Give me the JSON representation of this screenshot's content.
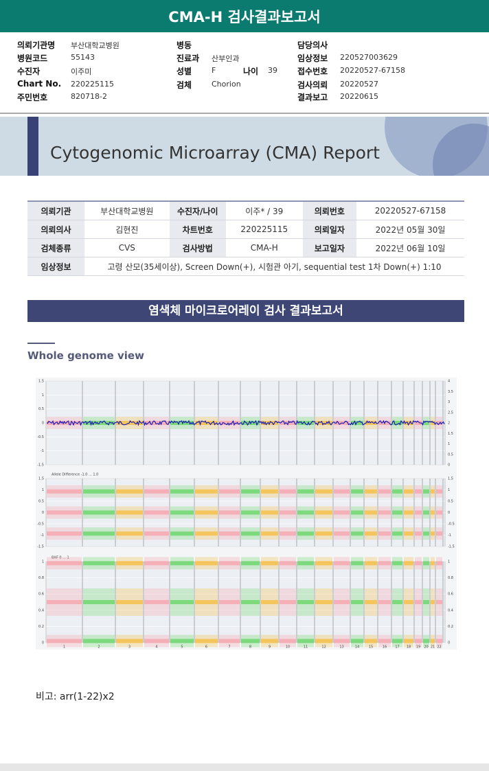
{
  "header": {
    "title": "CMA-H 검사결과보고서"
  },
  "patient_info": {
    "columns": [
      [
        [
          {
            "label": "의뢰기관명",
            "value": "부산대학교병원"
          }
        ],
        [
          {
            "label": "병원코드",
            "value": "55143"
          }
        ],
        [
          {
            "label": "수진자",
            "value": "이주미"
          }
        ],
        [
          {
            "label": "Chart No.",
            "value": "220225115"
          }
        ],
        [
          {
            "label": "주민번호",
            "value": "820718-2"
          }
        ]
      ],
      [
        [
          {
            "label": "병동"
          }
        ],
        [
          {
            "label": "진료과",
            "value": "산부인과"
          }
        ],
        [
          {
            "label": "성별",
            "value": "F"
          },
          {
            "label": "나이",
            "value": "39"
          }
        ],
        [
          {
            "label": "검체",
            "value": "Chorion"
          }
        ]
      ],
      [
        [
          {
            "label": "담당의사"
          }
        ],
        [
          {
            "label": "임상정보",
            "value": "220527003629"
          }
        ],
        [
          {
            "label": "접수번호",
            "value": "20220527-67158"
          }
        ],
        [
          {
            "label": "검사의뢰",
            "value": "20220527"
          }
        ],
        [
          {
            "label": "결과보고",
            "value": "20220615"
          }
        ]
      ]
    ]
  },
  "banner": {
    "title": "Cytogenomic Microarray (CMA) Report"
  },
  "table": {
    "rows": [
      [
        "의뢰기관",
        "부산대학교병원",
        "수진자/나이",
        "이주* / 39",
        "의뢰번호",
        "20220527-67158"
      ],
      [
        "의뢰의사",
        "김현진",
        "차트번호",
        "220225115",
        "의뢰일자",
        "2022년 05월 30일"
      ],
      [
        "검체종류",
        "CVS",
        "검사방법",
        "CMA-H",
        "보고일자",
        "2022년 06월 10일"
      ],
      [
        "임상정보",
        "고령 산모(35세이상), Screen Down(+), 시험관 아기, sequential test 1차 Down(+) 1:10"
      ]
    ]
  },
  "section_title": "염색체 마이크로어레이 검사 결과보고서",
  "genome_view": {
    "title": "Whole genome view",
    "panels": [
      {
        "left_ticks": [
          "1.5",
          "1",
          "0.5",
          "0",
          "-0.5",
          "-1",
          "-1.5"
        ],
        "right_ticks": [
          "4",
          "3.5",
          "3",
          "2.5",
          "2",
          "1.5",
          "1",
          "0.5",
          "0"
        ]
      },
      {
        "caption": "Allele Difference -1.0 ... 1.0",
        "left_ticks": [
          "1.5",
          "1",
          "0.5",
          "0",
          "-0.5",
          "-1",
          "-1.5"
        ],
        "right_ticks": [
          "1.5",
          "1",
          "0.5",
          "0",
          "-0.5",
          "-1",
          "-1.5"
        ]
      },
      {
        "caption": "BAF 0 ... 1",
        "left_ticks": [
          "1",
          "0.8",
          "0.6",
          "0.4",
          "0.2",
          "0"
        ],
        "right_ticks": [
          "1",
          "0.8",
          "0.6",
          "0.4",
          "0.2",
          "0"
        ]
      }
    ],
    "chromosomes": [
      "1",
      "2",
      "3",
      "4",
      "5",
      "6",
      "7",
      "8",
      "9",
      "10",
      "11",
      "12",
      "13",
      "14",
      "15",
      "16",
      "17",
      "18",
      "19",
      "20",
      "21",
      "22"
    ]
  },
  "note": "비고: arr(1-22)x2"
}
